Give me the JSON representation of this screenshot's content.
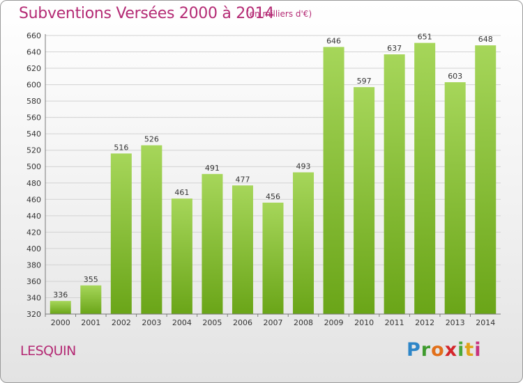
{
  "header": {
    "title": "Subventions Versées 2000 à 2014",
    "subtitle": "(en milliers d'€)"
  },
  "footer": {
    "commune": "LESQUIN",
    "logo": "Proxiti"
  },
  "colors": {
    "accent": "#b42a74",
    "bar_light": "#a6d65a",
    "bar_dark": "#6aa518"
  },
  "chart_data": {
    "type": "bar",
    "title": "Subventions Versées 2000 à 2014",
    "subtitle": "(en milliers d'€)",
    "xlabel": "",
    "ylabel": "",
    "categories": [
      "2000",
      "2001",
      "2002",
      "2003",
      "2004",
      "2005",
      "2006",
      "2007",
      "2008",
      "2009",
      "2010",
      "2011",
      "2012",
      "2013",
      "2014"
    ],
    "values": [
      336,
      355,
      516,
      526,
      461,
      491,
      477,
      456,
      493,
      646,
      597,
      637,
      651,
      603,
      648
    ],
    "ylim": [
      320,
      660
    ],
    "yticks": [
      320,
      340,
      360,
      380,
      400,
      420,
      440,
      460,
      480,
      500,
      520,
      540,
      560,
      580,
      600,
      620,
      640,
      660
    ],
    "grid": true,
    "legend": "none"
  }
}
